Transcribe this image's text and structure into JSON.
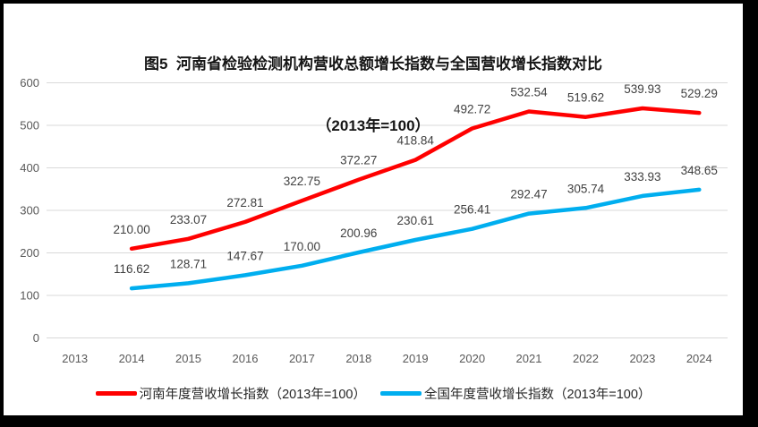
{
  "title": {
    "line1": "图5  河南省检验检测机构营收总额增长指数与全国营收增长指数对比",
    "line2": "（2013年=100）"
  },
  "colors": {
    "grid": "#D9D9D9",
    "axis_text": "#595959",
    "data_label": "#404040",
    "henan_line": "#FF0000",
    "national_line": "#00AEEF"
  },
  "chart_data": {
    "type": "line",
    "categories": [
      "2013",
      "2014",
      "2015",
      "2016",
      "2017",
      "2018",
      "2019",
      "2020",
      "2021",
      "2022",
      "2023",
      "2024"
    ],
    "series": [
      {
        "name": "河南年度营收增长指数（2013年=100）",
        "color": "#FF0000",
        "values": [
          null,
          210.0,
          233.07,
          272.81,
          322.75,
          372.27,
          418.84,
          492.72,
          532.54,
          519.62,
          539.93,
          529.29
        ]
      },
      {
        "name": "全国年度营收增长指数（2013年=100）",
        "color": "#00AEEF",
        "values": [
          null,
          116.62,
          128.71,
          147.67,
          170.0,
          200.96,
          230.61,
          256.41,
          292.47,
          305.74,
          333.93,
          348.65
        ]
      }
    ],
    "title": "图5 河南省检验检测机构营收总额增长指数与全国营收增长指数对比（2013年=100）",
    "xlabel": "",
    "ylabel": "",
    "ylim": [
      0,
      600
    ],
    "ytick": 100,
    "grid": "horizontal",
    "legend_position": "bottom",
    "data_labels": "above",
    "label_decimals": 2
  }
}
